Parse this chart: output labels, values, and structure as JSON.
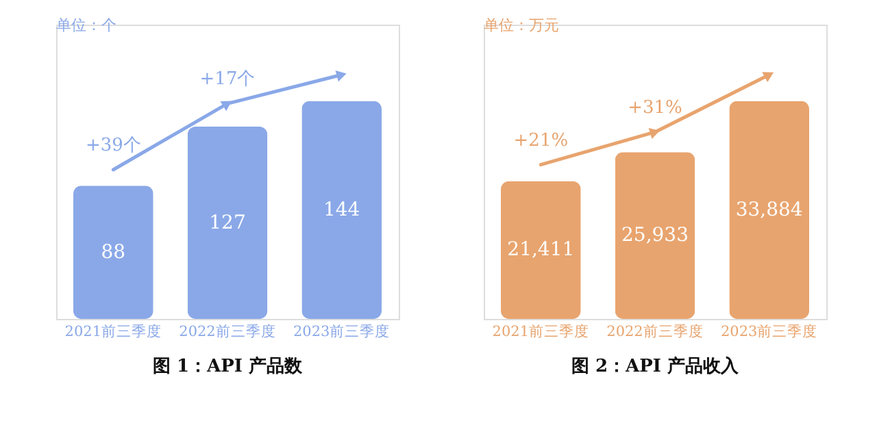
{
  "chart_data": [
    {
      "type": "bar",
      "title": "图 1：API 产品数",
      "categories": [
        "2021前三季度",
        "2022前三季度",
        "2023前三季度"
      ],
      "values": [
        88,
        127,
        144
      ],
      "color": "#8aa8e8",
      "data_labels": true,
      "annotations": [
        "单位：个",
        "+39个",
        "+17个"
      ]
    },
    {
      "type": "bar",
      "title": "图 2：API 产品收入",
      "categories": [
        "2021前三季度",
        "2022前三季度",
        "2023前三季度"
      ],
      "values": [
        21411,
        25933,
        33884
      ],
      "color": "#e8a46e",
      "value_labels": [
        "21,411",
        "25,933",
        "33,884"
      ],
      "annotations": [
        "单位：万元",
        "+21%",
        "+31%"
      ]
    }
  ]
}
